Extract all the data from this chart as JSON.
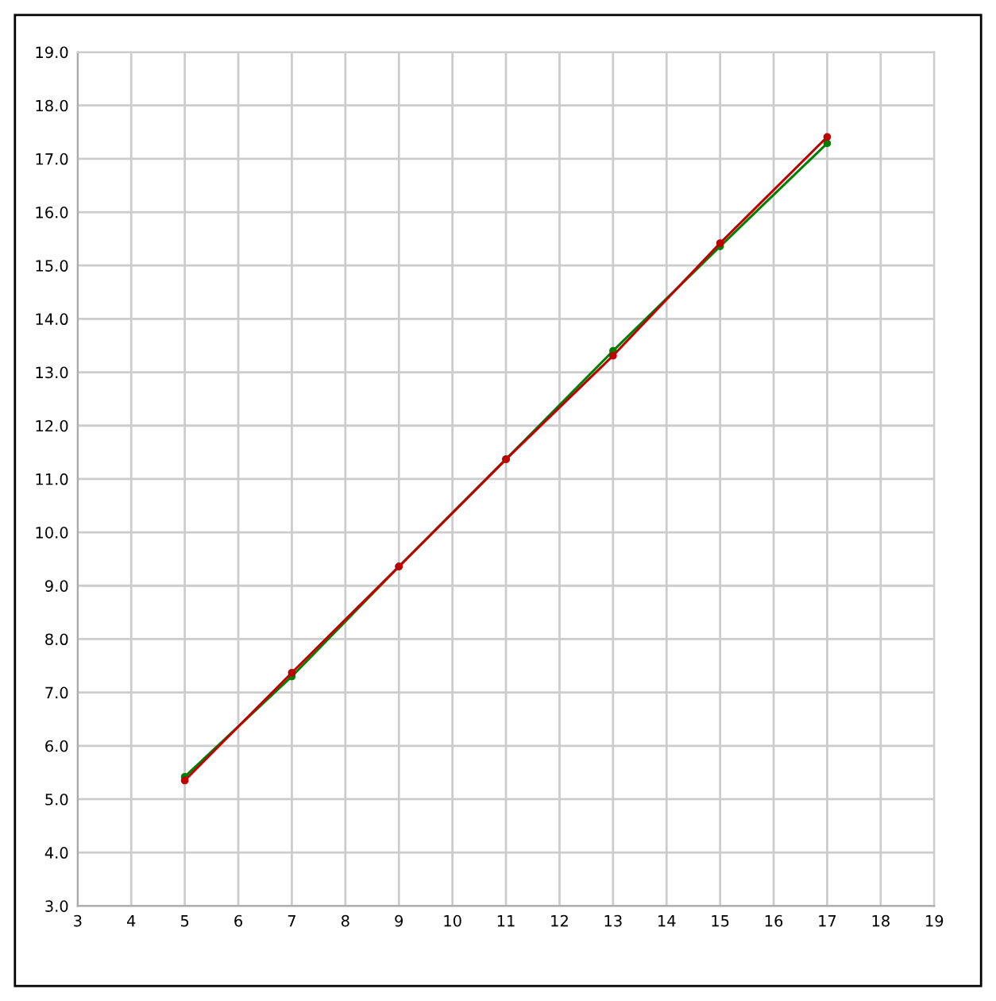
{
  "chart_data": {
    "type": "line",
    "x": [
      5,
      7,
      9,
      11,
      13,
      15,
      17
    ],
    "series": [
      {
        "color": "#008000",
        "values": [
          5.42,
          7.3,
          9.36,
          11.37,
          13.4,
          15.36,
          17.29
        ]
      },
      {
        "color": "#c00000",
        "values": [
          5.35,
          7.37,
          9.36,
          11.37,
          13.31,
          15.42,
          17.41
        ]
      }
    ],
    "xlim": [
      3,
      19
    ],
    "xticks": [
      3,
      4,
      5,
      6,
      7,
      8,
      9,
      10,
      11,
      12,
      13,
      14,
      15,
      16,
      17,
      18,
      19
    ],
    "ylim": [
      3,
      19
    ],
    "yticks": [
      {
        "value": 3,
        "label": "3.0"
      },
      {
        "value": 4,
        "label": "4.0"
      },
      {
        "value": 5,
        "label": "5.0"
      },
      {
        "value": 6,
        "label": "6.0"
      },
      {
        "value": 7,
        "label": "7.0"
      },
      {
        "value": 8,
        "label": "8.0"
      },
      {
        "value": 9,
        "label": "9.0"
      },
      {
        "value": 10,
        "label": "10.0"
      },
      {
        "value": 11,
        "label": "11.0"
      },
      {
        "value": 12,
        "label": "12.0"
      },
      {
        "value": 13,
        "label": "13.0"
      },
      {
        "value": 14,
        "label": "14.0"
      },
      {
        "value": 15,
        "label": "15.0"
      },
      {
        "value": 16,
        "label": "16.0"
      },
      {
        "value": 17,
        "label": "17.0"
      },
      {
        "value": 18,
        "label": "18.0"
      },
      {
        "value": 19,
        "label": "19.0"
      }
    ],
    "grid": true,
    "marker": "circle",
    "line_style": "solid"
  }
}
